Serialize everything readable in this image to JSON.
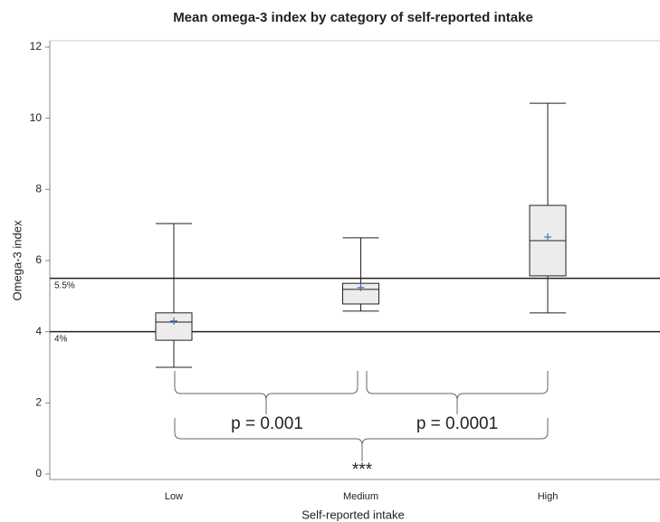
{
  "chart_data": {
    "type": "box",
    "title": "Mean omega-3 index by category of self-reported intake",
    "xlabel": "Self-reported intake",
    "ylabel": "Omega-3 index",
    "categories": [
      "Low",
      "Medium",
      "High"
    ],
    "boxes": [
      {
        "min": 3.0,
        "q1": 3.76,
        "median": 4.27,
        "q3": 4.53,
        "max": 7.04,
        "mean": 4.3
      },
      {
        "min": 4.58,
        "q1": 4.78,
        "median": 5.19,
        "q3": 5.36,
        "max": 6.64,
        "mean": 5.24
      },
      {
        "min": 4.53,
        "q1": 5.57,
        "median": 6.56,
        "q3": 7.55,
        "max": 10.42,
        "mean": 6.66
      }
    ],
    "box_color": "#ececec",
    "mean_color": "#4a6fb5",
    "reference_lines": [
      {
        "value": 5.5,
        "label": "5.5%"
      },
      {
        "value": 4,
        "label": "4%"
      }
    ],
    "annotations": [
      "p = 0.001",
      "p = 0.0001",
      "***"
    ],
    "ylim": [
      0,
      12
    ],
    "yticks": [
      0,
      2,
      4,
      6,
      8,
      10,
      12
    ]
  }
}
